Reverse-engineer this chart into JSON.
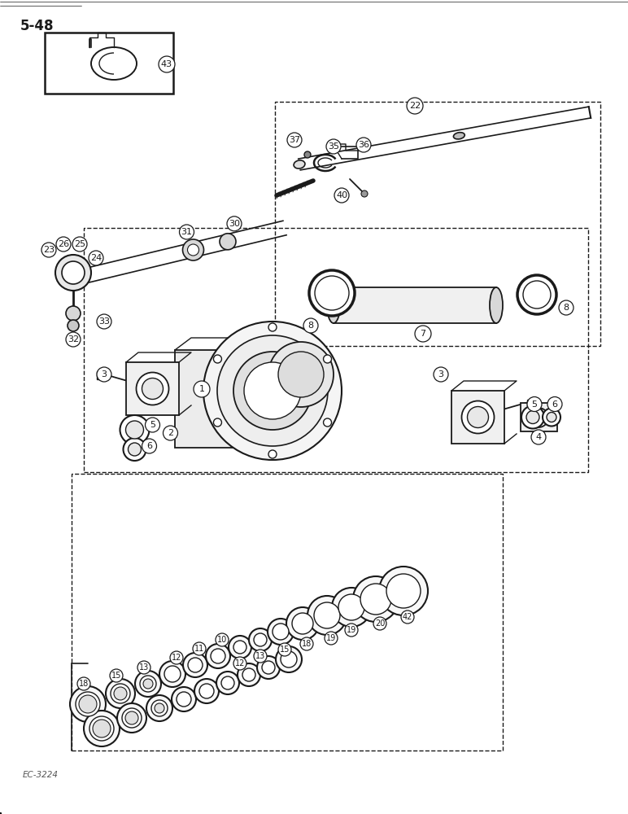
{
  "title": "5-48",
  "footer": "EC-3224",
  "bg_color": "#ffffff",
  "line_color": "#1a1a1a",
  "figsize": [
    7.72,
    10.0
  ],
  "dpi": 100
}
